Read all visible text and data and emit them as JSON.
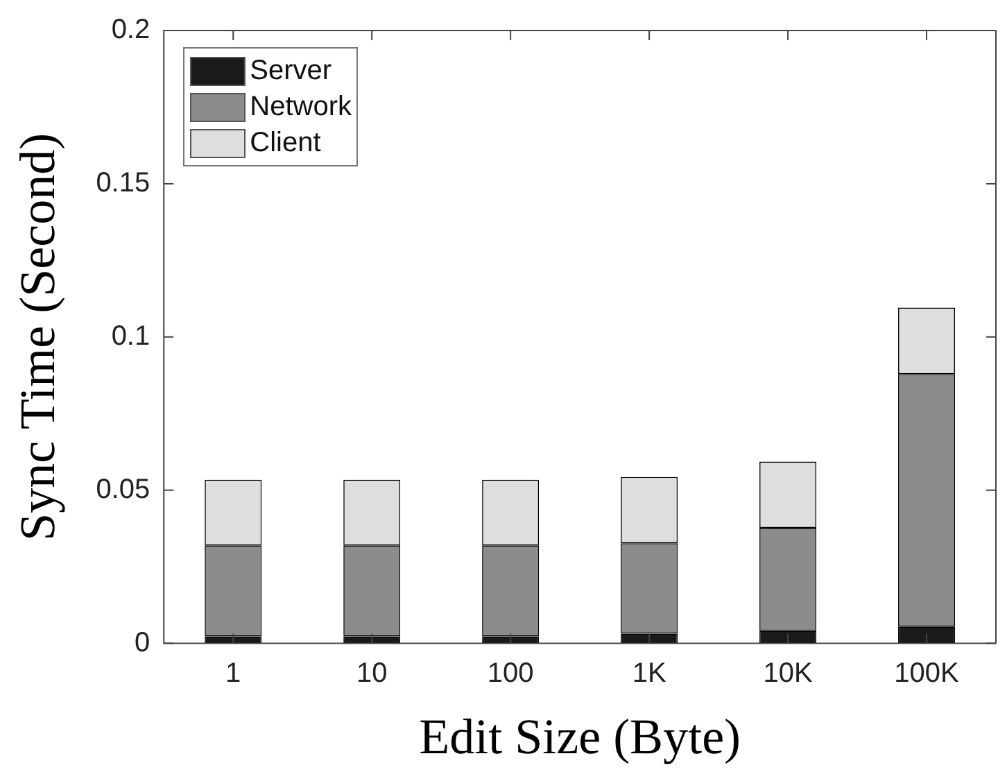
{
  "chart_data": {
    "type": "bar",
    "stacked": true,
    "xlabel": "Edit Size (Byte)",
    "ylabel": "Sync Time (Second)",
    "categories": [
      "1",
      "10",
      "100",
      "1K",
      "10K",
      "100K"
    ],
    "series": [
      {
        "name": "Server",
        "color": "#1a1a1a",
        "values": [
          0.0023,
          0.0023,
          0.0023,
          0.0032,
          0.0041,
          0.0055
        ]
      },
      {
        "name": "Network",
        "color": "#8c8c8c",
        "values": [
          0.0296,
          0.0296,
          0.0296,
          0.0295,
          0.0336,
          0.0824
        ]
      },
      {
        "name": "Client",
        "color": "#dedede",
        "values": [
          0.0215,
          0.0215,
          0.0215,
          0.0216,
          0.0216,
          0.0217
        ]
      }
    ],
    "ylim": [
      0,
      0.2
    ],
    "yticks": [
      0,
      0.05,
      0.1,
      0.15,
      0.2
    ],
    "grid": false,
    "legend": "top left"
  }
}
